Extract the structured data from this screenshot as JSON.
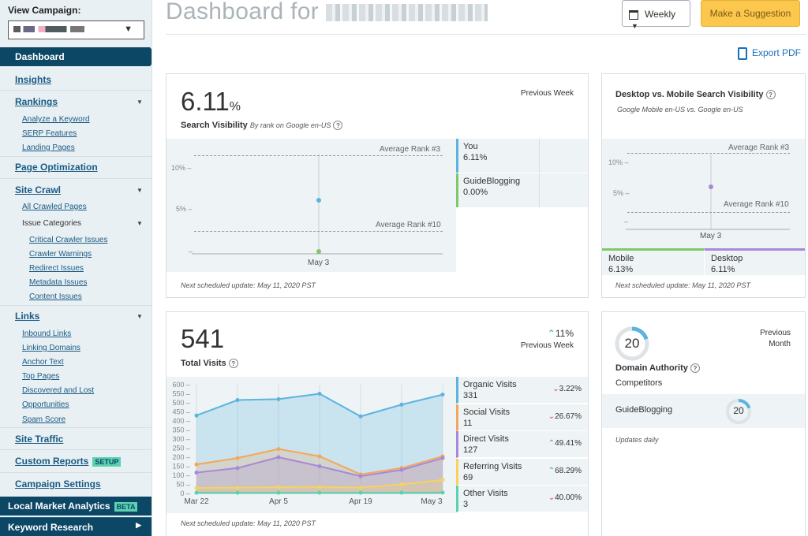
{
  "sidebar": {
    "campaign_label": "View Campaign:",
    "dashboard": "Dashboard",
    "insights": "Insights",
    "rankings": "Rankings",
    "rankings_sub": [
      "Analyze a Keyword",
      "SERP Features",
      "Landing Pages"
    ],
    "page_optimization": "Page Optimization",
    "site_crawl": "Site Crawl",
    "site_crawl_sub": "All Crawled Pages",
    "issue_categories": "Issue Categories",
    "issue_sub": [
      "Critical Crawler Issues",
      "Crawler Warnings",
      "Redirect Issues",
      "Metadata Issues",
      "Content Issues"
    ],
    "links": "Links",
    "links_sub": [
      "Inbound Links",
      "Linking Domains",
      "Anchor Text",
      "Top Pages",
      "Discovered and Lost",
      "Opportunities",
      "Spam Score"
    ],
    "site_traffic": "Site Traffic",
    "custom_reports": "Custom Reports",
    "setup_badge": "SETUP",
    "campaign_settings": "Campaign Settings",
    "local_market": "Local Market Analytics",
    "beta_badge": "BETA",
    "keyword_research": "Keyword Research"
  },
  "header": {
    "title_prefix": "Dashboard for",
    "period": "Weekly",
    "suggest": "Make a Suggestion",
    "export": "Export PDF"
  },
  "visibility": {
    "value": "6.11",
    "unit": "%",
    "label": "Search Visibility",
    "sublabel": "By rank on Google en-US",
    "period": "Previous Week",
    "ticks": [
      "10% –",
      "5% –",
      "–"
    ],
    "avg3": "Average Rank #3",
    "avg10": "Average Rank #10",
    "xdate": "May 3",
    "legend": [
      {
        "name": "You",
        "value": "6.11%",
        "color": "#5ab4e0"
      },
      {
        "name": "GuideBlogging",
        "value": "0.00%",
        "color": "#7dc96a"
      }
    ],
    "note": "Next scheduled update: May 11, 2020 PST",
    "chart_data": {
      "type": "scatter",
      "x": [
        "May 3"
      ],
      "series": [
        {
          "name": "You",
          "values": [
            6.11
          ]
        },
        {
          "name": "GuideBlogging",
          "values": [
            0.0
          ]
        }
      ],
      "ylim": [
        0,
        12
      ]
    }
  },
  "desktop_mobile": {
    "title": "Desktop vs. Mobile Search Visibility",
    "sub": "Google Mobile en-US vs. Google en-US",
    "ticks": [
      "10% –",
      "5% –",
      "–"
    ],
    "avg3": "Average Rank #3",
    "avg10": "Average Rank #10",
    "xdate": "May 3",
    "mobile_label": "Mobile",
    "mobile_value": "6.13%",
    "desktop_label": "Desktop",
    "desktop_value": "6.11%",
    "note": "Next scheduled update: May 11, 2020 PST",
    "chart_data": {
      "type": "scatter",
      "x": [
        "May 3"
      ],
      "series": [
        {
          "name": "Mobile",
          "values": [
            6.13
          ]
        },
        {
          "name": "Desktop",
          "values": [
            6.11
          ]
        }
      ],
      "ylim": [
        0,
        12
      ]
    }
  },
  "visits": {
    "value": "541",
    "label": "Total Visits",
    "change": "11%",
    "period": "Previous Week",
    "note": "Next scheduled update: May 11, 2020 PST",
    "legend": [
      {
        "name": "Organic Visits",
        "value": "331",
        "change": "3.22%",
        "dir": "down",
        "color": "#5ab4e0"
      },
      {
        "name": "Social Visits",
        "value": "11",
        "change": "26.67%",
        "dir": "down",
        "color": "#f3a75e"
      },
      {
        "name": "Direct Visits",
        "value": "127",
        "change": "49.41%",
        "dir": "up",
        "color": "#a888d8"
      },
      {
        "name": "Referring Visits",
        "value": "69",
        "change": "68.29%",
        "dir": "up",
        "color": "#f7d25e"
      },
      {
        "name": "Other Visits",
        "value": "3",
        "change": "40.00%",
        "dir": "down",
        "color": "#5ad2b2"
      }
    ],
    "chart_data": {
      "type": "area",
      "yticks": [
        "600",
        "550",
        "500",
        "450",
        "400",
        "350",
        "300",
        "250",
        "200",
        "150",
        "100",
        "50",
        "0"
      ],
      "xticks": [
        "Mar 22",
        "Apr 5",
        "Apr 19",
        "May 3"
      ],
      "ylim": [
        0,
        600
      ],
      "series": [
        {
          "name": "Organic Visits",
          "values": [
            430,
            515,
            520,
            550,
            425,
            490,
            545
          ],
          "color": "#5ab4e0"
        },
        {
          "name": "Social Visits",
          "values": [
            160,
            195,
            245,
            205,
            105,
            140,
            205
          ],
          "color": "#f3a75e"
        },
        {
          "name": "Direct Visits",
          "values": [
            115,
            140,
            200,
            150,
            95,
            130,
            195
          ],
          "color": "#a888d8"
        },
        {
          "name": "Referring Visits",
          "values": [
            30,
            32,
            35,
            36,
            32,
            50,
            75
          ],
          "color": "#f7d25e"
        },
        {
          "name": "Other Visits",
          "values": [
            4,
            4,
            4,
            4,
            4,
            4,
            5
          ],
          "color": "#5ad2b2"
        }
      ]
    }
  },
  "authority": {
    "value": "20",
    "progress": 0.2,
    "period_line1": "Previous",
    "period_line2": "Month",
    "label": "Domain Authority",
    "competitors": "Competitors",
    "comp_name": "GuideBlogging",
    "comp_value": "20",
    "note": "Updates daily"
  }
}
